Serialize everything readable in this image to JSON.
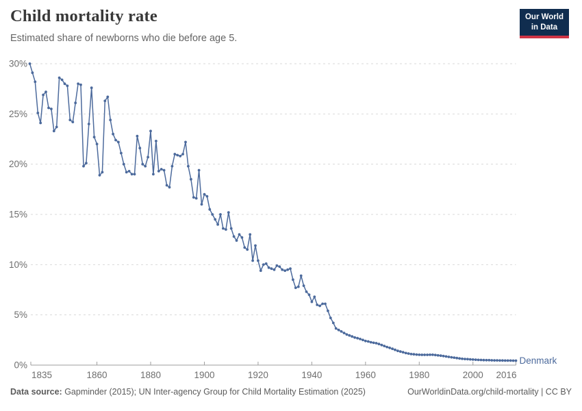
{
  "header": {
    "title": "Child mortality rate",
    "subtitle": "Estimated share of newborns who die before age 5.",
    "logo": {
      "line1": "Our World",
      "line2": "in Data"
    }
  },
  "palette": {
    "line": "#4C6A9C",
    "grid": "#d9d9d9",
    "axis": "#9e9e9e",
    "tick_label": "#6e6e6e",
    "title": "#383838",
    "subtitle": "#646464",
    "footer": "#5b5b5b",
    "logo_bg": "#102d4f",
    "logo_accent": "#cf3545"
  },
  "chart_data": {
    "type": "line",
    "title": "Child mortality rate",
    "subtitle": "Estimated share of newborns who die before age 5.",
    "xlabel": "",
    "ylabel": "",
    "xlim": [
      1835,
      2016
    ],
    "ylim": [
      0,
      30
    ],
    "grid": "horizontal-dashed",
    "legend": "end-of-line-label",
    "x_ticks": [
      1835,
      1860,
      1880,
      1900,
      1920,
      1940,
      1960,
      1980,
      2000,
      2016
    ],
    "y_ticks": [
      0,
      5,
      10,
      15,
      20,
      25,
      30
    ],
    "y_tick_suffix": "%",
    "series": [
      {
        "name": "Denmark",
        "color": "#4C6A9C",
        "start_year": 1835,
        "end_year": 2016,
        "step": 1,
        "unit": "%",
        "values": [
          30,
          29.1,
          28.2,
          25.1,
          24.1,
          26.9,
          27.2,
          25.6,
          25.5,
          23.3,
          23.7,
          28.6,
          28.4,
          28,
          27.8,
          24.4,
          24.2,
          26.1,
          28,
          27.9,
          19.8,
          20.1,
          24,
          27.6,
          22.7,
          22,
          18.9,
          19.2,
          26.3,
          26.7,
          24.4,
          23,
          22.4,
          22.2,
          21.1,
          20,
          19.2,
          19.3,
          19,
          19,
          22.8,
          21.6,
          20,
          19.8,
          20.7,
          23.3,
          19,
          22.3,
          19.3,
          19.5,
          19.4,
          17.9,
          17.7,
          19.8,
          21,
          20.9,
          20.8,
          21,
          22.2,
          19.8,
          18.5,
          16.7,
          16.6,
          19.4,
          16,
          17,
          16.8,
          15.5,
          15,
          14.5,
          14,
          15,
          13.6,
          13.5,
          15.2,
          13.6,
          12.8,
          12.4,
          13,
          12.7,
          11.7,
          11.5,
          13,
          10.4,
          11.9,
          10.4,
          9.4,
          10,
          10.1,
          9.7,
          9.6,
          9.5,
          9.9,
          9.8,
          9.5,
          9.4,
          9.5,
          9.6,
          8.5,
          7.7,
          7.8,
          8.9,
          7.9,
          7.3,
          7,
          6.3,
          6.8,
          6,
          5.9,
          6.1,
          6.1,
          5.4,
          4.7,
          4.2,
          3.65,
          3.5,
          3.35,
          3.2,
          3.05,
          2.95,
          2.85,
          2.75,
          2.68,
          2.6,
          2.5,
          2.4,
          2.35,
          2.28,
          2.22,
          2.18,
          2.1,
          2,
          1.9,
          1.8,
          1.72,
          1.62,
          1.52,
          1.42,
          1.35,
          1.28,
          1.2,
          1.15,
          1.1,
          1.08,
          1.05,
          1.03,
          1.02,
          1.02,
          1.02,
          1.03,
          1.03,
          1,
          0.97,
          0.94,
          0.9,
          0.86,
          0.82,
          0.78,
          0.74,
          0.7,
          0.66,
          0.63,
          0.61,
          0.59,
          0.57,
          0.55,
          0.54,
          0.52,
          0.51,
          0.5,
          0.49,
          0.49,
          0.48,
          0.47,
          0.47,
          0.46,
          0.46,
          0.45,
          0.45,
          0.45,
          0.44,
          0.44
        ]
      }
    ],
    "entity_label": "Denmark"
  },
  "footer": {
    "source_label": "Data source:",
    "source_text": " Gapminder (2015); UN Inter-agency Group for Child Mortality Estimation (2025)",
    "link": "OurWorldinData.org/child-mortality",
    "separator": " | ",
    "license": "CC BY"
  }
}
